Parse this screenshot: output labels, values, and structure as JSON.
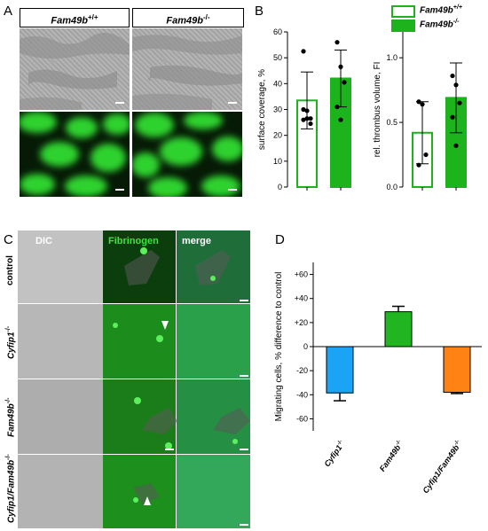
{
  "panels": {
    "a": "A",
    "b": "B",
    "c": "C",
    "d": "D"
  },
  "panelA": {
    "headers": [
      "Fam49b",
      "Fam49b"
    ],
    "header_sups": [
      "+/+",
      "-/-"
    ]
  },
  "panelB": {
    "legend": [
      {
        "label": "Fam49b",
        "sup": "+/+",
        "color": "#ffffff",
        "border": "#1db31d"
      },
      {
        "label": "Fam49b",
        "sup": "-/-",
        "color": "#1db31d",
        "border": "#1db31d"
      }
    ]
  },
  "panelC": {
    "columns": [
      "DIC",
      "Fibrinogen",
      "merge"
    ],
    "rows": [
      {
        "label": "control",
        "sup": ""
      },
      {
        "label": "Cyfip1",
        "sup": "-/-"
      },
      {
        "label": "Fam49b",
        "sup": "-/-"
      },
      {
        "label": "Cyfip1/Fam49b",
        "sup": "-/-"
      }
    ]
  },
  "chart_data": [
    {
      "type": "bar",
      "ylabel": "surface coverage, %",
      "ylim": [
        0,
        60
      ],
      "yticks": [
        0,
        10,
        20,
        30,
        40,
        50,
        60
      ],
      "series": [
        {
          "values": [
            33.5
          ],
          "error": 11,
          "fill": "#ffffff",
          "edge": "#1db31d",
          "points": [
            30,
            29.5,
            24.5,
            26,
            26.5,
            26.5,
            52.5
          ]
        },
        {
          "values": [
            42
          ],
          "error": 11,
          "fill": "#1db31d",
          "edge": "#1db31d",
          "points": [
            56,
            46.5,
            40.5,
            31,
            26
          ]
        }
      ]
    },
    {
      "type": "bar",
      "ylabel": "rel. thrombus volume, FI",
      "ylim": [
        0,
        1.2
      ],
      "yticks": [
        0.0,
        0.5,
        1.0
      ],
      "ytick_labels": [
        "0.0",
        "0.5",
        "1.0"
      ],
      "series": [
        {
          "values": [
            0.42
          ],
          "error": 0.24,
          "fill": "#ffffff",
          "edge": "#1db31d",
          "points": [
            0.66,
            0.64,
            0.25,
            0.17
          ]
        },
        {
          "values": [
            0.69
          ],
          "error": 0.27,
          "fill": "#1db31d",
          "edge": "#1db31d",
          "points": [
            0.86,
            0.79,
            0.65,
            0.54,
            0.32
          ]
        }
      ]
    },
    {
      "type": "bar",
      "ylabel": "Migrating cells, % difference to control",
      "ylim": [
        -70,
        70
      ],
      "yticks": [
        -60,
        -40,
        -20,
        0,
        20,
        40,
        60
      ],
      "ytick_labels": [
        "-60",
        "-40",
        "-20",
        "0",
        "+20",
        "+40",
        "+60"
      ],
      "categories": [
        "Cyfip1",
        "Fam49b",
        "Cyfip1/Fam49b"
      ],
      "category_sups": [
        "-/-",
        "-/-",
        "-/-"
      ],
      "values": [
        -38.5,
        29,
        -38
      ],
      "errors": [
        6.5,
        4.5,
        1
      ],
      "colors": [
        "#1ba4f5",
        "#21b521",
        "#ff8214"
      ]
    }
  ]
}
